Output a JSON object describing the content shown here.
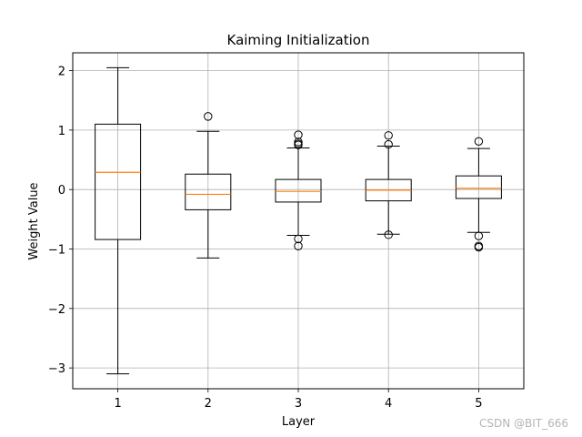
{
  "chart_data": {
    "type": "box",
    "title": "Kaiming Initialization",
    "xlabel": "Layer",
    "ylabel": "Weight Value",
    "categories": [
      "1",
      "2",
      "3",
      "4",
      "5"
    ],
    "ylim": [
      -3.35,
      2.3
    ],
    "yticks": [
      -3,
      -2,
      -1,
      0,
      1,
      2
    ],
    "ytick_labels": [
      "−3",
      "−2",
      "−1",
      "0",
      "1",
      "2"
    ],
    "grid": true,
    "boxes": [
      {
        "label": "1",
        "whisker_low": -3.1,
        "q1": -0.84,
        "median": 0.29,
        "q3": 1.1,
        "whisker_high": 2.05,
        "outliers": []
      },
      {
        "label": "2",
        "whisker_low": -1.15,
        "q1": -0.34,
        "median": -0.08,
        "q3": 0.26,
        "whisker_high": 0.98,
        "outliers": [
          1.23
        ]
      },
      {
        "label": "3",
        "whisker_low": -0.77,
        "q1": -0.21,
        "median": -0.03,
        "q3": 0.17,
        "whisker_high": 0.7,
        "outliers": [
          0.92,
          0.8,
          0.77,
          0.75,
          -0.83,
          -0.95
        ]
      },
      {
        "label": "4",
        "whisker_low": -0.75,
        "q1": -0.19,
        "median": -0.01,
        "q3": 0.17,
        "whisker_high": 0.73,
        "outliers": [
          0.91,
          0.76,
          -0.76
        ]
      },
      {
        "label": "5",
        "whisker_low": -0.72,
        "q1": -0.15,
        "median": 0.02,
        "q3": 0.23,
        "whisker_high": 0.69,
        "outliers": [
          0.81,
          -0.78,
          -0.95,
          -0.97
        ]
      }
    ],
    "colors": {
      "box": "#000000",
      "median": "#ff7f0e",
      "grid": "#b0b0b0"
    }
  },
  "watermark": "CSDN @BIT_666"
}
